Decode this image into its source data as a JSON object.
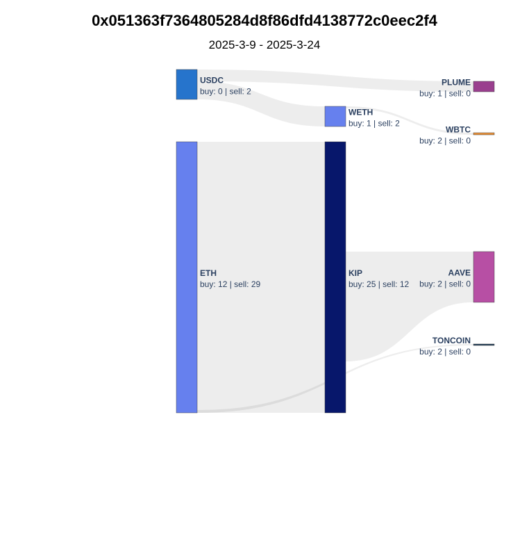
{
  "title": "0x051363f7364805284d8f86dfd4138772c0eec2f4",
  "subtitle": "2025-3-9 - 2025-3-24",
  "nodes": [
    {
      "key": "usdc",
      "name": "USDC",
      "stats": "buy: 0 | sell: 2",
      "color": "#2674cc"
    },
    {
      "key": "eth",
      "name": "ETH",
      "stats": "buy: 12 | sell: 29",
      "color": "#6680ee"
    },
    {
      "key": "weth",
      "name": "WETH",
      "stats": "buy: 1 | sell: 2",
      "color": "#6680ee"
    },
    {
      "key": "kip",
      "name": "KIP",
      "stats": "buy: 25 | sell: 12",
      "color": "#07176b"
    },
    {
      "key": "plume",
      "name": "PLUME",
      "stats": "buy: 1 | sell: 0",
      "color": "#9a3f8e"
    },
    {
      "key": "wbtc",
      "name": "WBTC",
      "stats": "buy: 2 | sell: 0",
      "color": "#e8913a"
    },
    {
      "key": "aave",
      "name": "AAVE",
      "stats": "buy: 2 | sell: 0",
      "color": "#b74fa4"
    },
    {
      "key": "toncoin",
      "name": "TONCOIN",
      "stats": "buy: 2 | sell: 0",
      "color": "#1b3a57"
    }
  ],
  "links": [
    {
      "source": "usdc",
      "target": "plume"
    },
    {
      "source": "usdc",
      "target": "weth"
    },
    {
      "source": "eth",
      "target": "kip"
    },
    {
      "source": "weth",
      "target": "wbtc"
    },
    {
      "source": "kip",
      "target": "aave"
    },
    {
      "source": "eth",
      "target": "toncoin"
    }
  ]
}
